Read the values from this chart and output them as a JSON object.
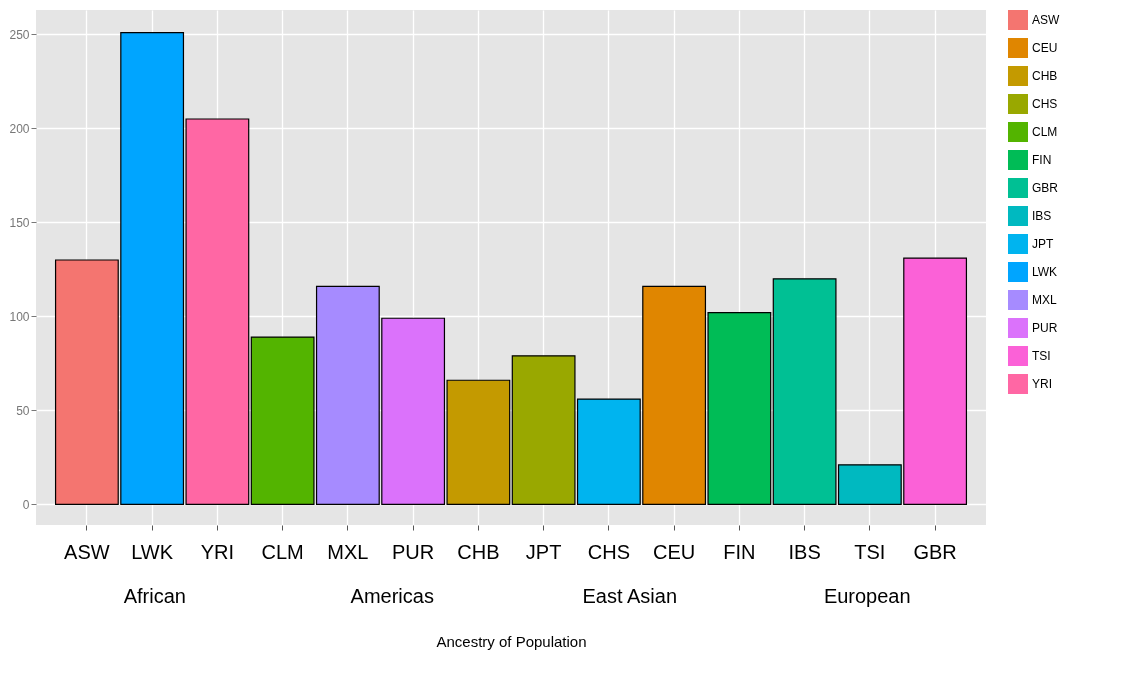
{
  "chart_data": {
    "type": "bar",
    "xlabel": "Ancestry of Population",
    "categories": [
      "ASW",
      "LWK",
      "YRI",
      "CLM",
      "MXL",
      "PUR",
      "CHB",
      "JPT",
      "CHS",
      "CEU",
      "FIN",
      "IBS",
      "TSI",
      "GBR"
    ],
    "series": [
      {
        "name": "ASW",
        "color": "#f47570",
        "values": [
          130,
          null,
          null,
          null,
          null,
          null,
          null,
          null,
          null,
          null,
          null,
          null,
          null,
          null
        ]
      },
      {
        "name": "CEU",
        "color": "#e08600",
        "values": [
          null,
          null,
          null,
          null,
          null,
          null,
          null,
          null,
          null,
          116,
          null,
          null,
          null,
          null
        ]
      },
      {
        "name": "CHB",
        "color": "#c49a00",
        "values": [
          null,
          null,
          null,
          null,
          null,
          null,
          66,
          null,
          null,
          null,
          null,
          null,
          null,
          null
        ]
      },
      {
        "name": "CHS",
        "color": "#99a800",
        "values": [
          null,
          null,
          null,
          null,
          null,
          null,
          null,
          79,
          null,
          null,
          null,
          null,
          null,
          null
        ]
      },
      {
        "name": "CLM",
        "color": "#53b400",
        "values": [
          null,
          null,
          null,
          89,
          null,
          null,
          null,
          null,
          null,
          null,
          null,
          null,
          null,
          null
        ]
      },
      {
        "name": "FIN",
        "color": "#00bc56",
        "values": [
          null,
          null,
          null,
          null,
          null,
          null,
          null,
          null,
          null,
          null,
          102,
          null,
          null,
          null
        ]
      },
      {
        "name": "GBR",
        "color": "#00c094",
        "values": [
          null,
          null,
          null,
          null,
          null,
          null,
          null,
          null,
          null,
          null,
          null,
          120,
          null,
          null
        ]
      },
      {
        "name": "IBS",
        "color": "#00b9c0",
        "values": [
          null,
          null,
          null,
          null,
          null,
          null,
          null,
          null,
          null,
          null,
          null,
          null,
          21,
          null
        ]
      },
      {
        "name": "JPT",
        "color": "#00b4ef",
        "values": [
          null,
          null,
          null,
          null,
          null,
          null,
          null,
          null,
          56,
          null,
          null,
          null,
          null,
          null
        ]
      },
      {
        "name": "LWK",
        "color": "#00a5ff",
        "values": [
          null,
          251,
          null,
          null,
          null,
          null,
          null,
          null,
          null,
          null,
          null,
          null,
          null,
          null
        ]
      },
      {
        "name": "MXL",
        "color": "#a68bff",
        "values": [
          null,
          null,
          null,
          null,
          116,
          null,
          null,
          null,
          null,
          null,
          null,
          null,
          null,
          null
        ]
      },
      {
        "name": "PUR",
        "color": "#db72fb",
        "values": [
          null,
          null,
          null,
          null,
          null,
          99,
          null,
          null,
          null,
          null,
          null,
          null,
          null,
          null
        ]
      },
      {
        "name": "TSI",
        "color": "#fb61d7",
        "values": [
          null,
          null,
          null,
          null,
          null,
          null,
          null,
          null,
          null,
          null,
          null,
          null,
          null,
          131
        ]
      },
      {
        "name": "YRI",
        "color": "#ff67a4",
        "values": [
          null,
          null,
          205,
          null,
          null,
          null,
          null,
          null,
          null,
          null,
          null,
          null,
          null,
          null
        ]
      }
    ],
    "annotations": [
      "African",
      "Americas",
      "East Asian",
      "European"
    ],
    "ylim": [
      -11,
      263
    ],
    "yticks": [
      0,
      50,
      100,
      150,
      200,
      250
    ],
    "grid": true,
    "legend": "right"
  }
}
